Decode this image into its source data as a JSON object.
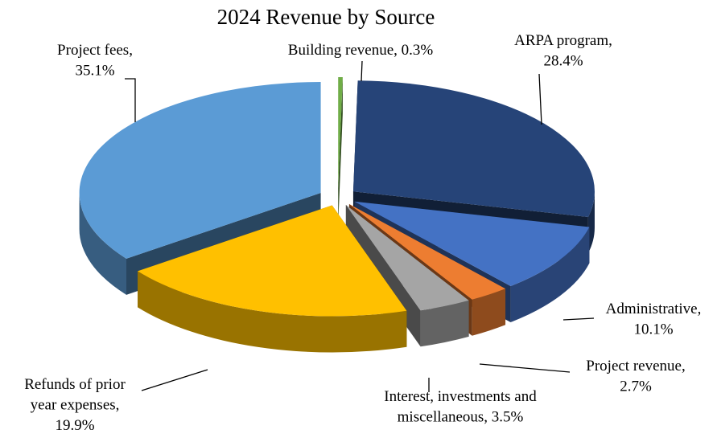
{
  "chart_data": {
    "type": "pie3d",
    "title": "2024 Revenue by Source",
    "values": [
      0.3,
      28.4,
      10.1,
      2.7,
      3.5,
      19.9,
      35.1
    ],
    "value_labels": [
      "Building revenue, 0.3%",
      "ARPA program, 28.4%",
      "Administrative, 10.1%",
      "Project revenue, 2.7%",
      "Interest, investments and miscellaneous, 3.5%",
      "Refunds of prior year expenses, 19.9%",
      "Project fees, 35.1%"
    ],
    "colors": [
      "#70ad47",
      "#264478",
      "#4472c4",
      "#ed7d31",
      "#a5a5a5",
      "#ffc000",
      "#5b9bd5"
    ]
  }
}
